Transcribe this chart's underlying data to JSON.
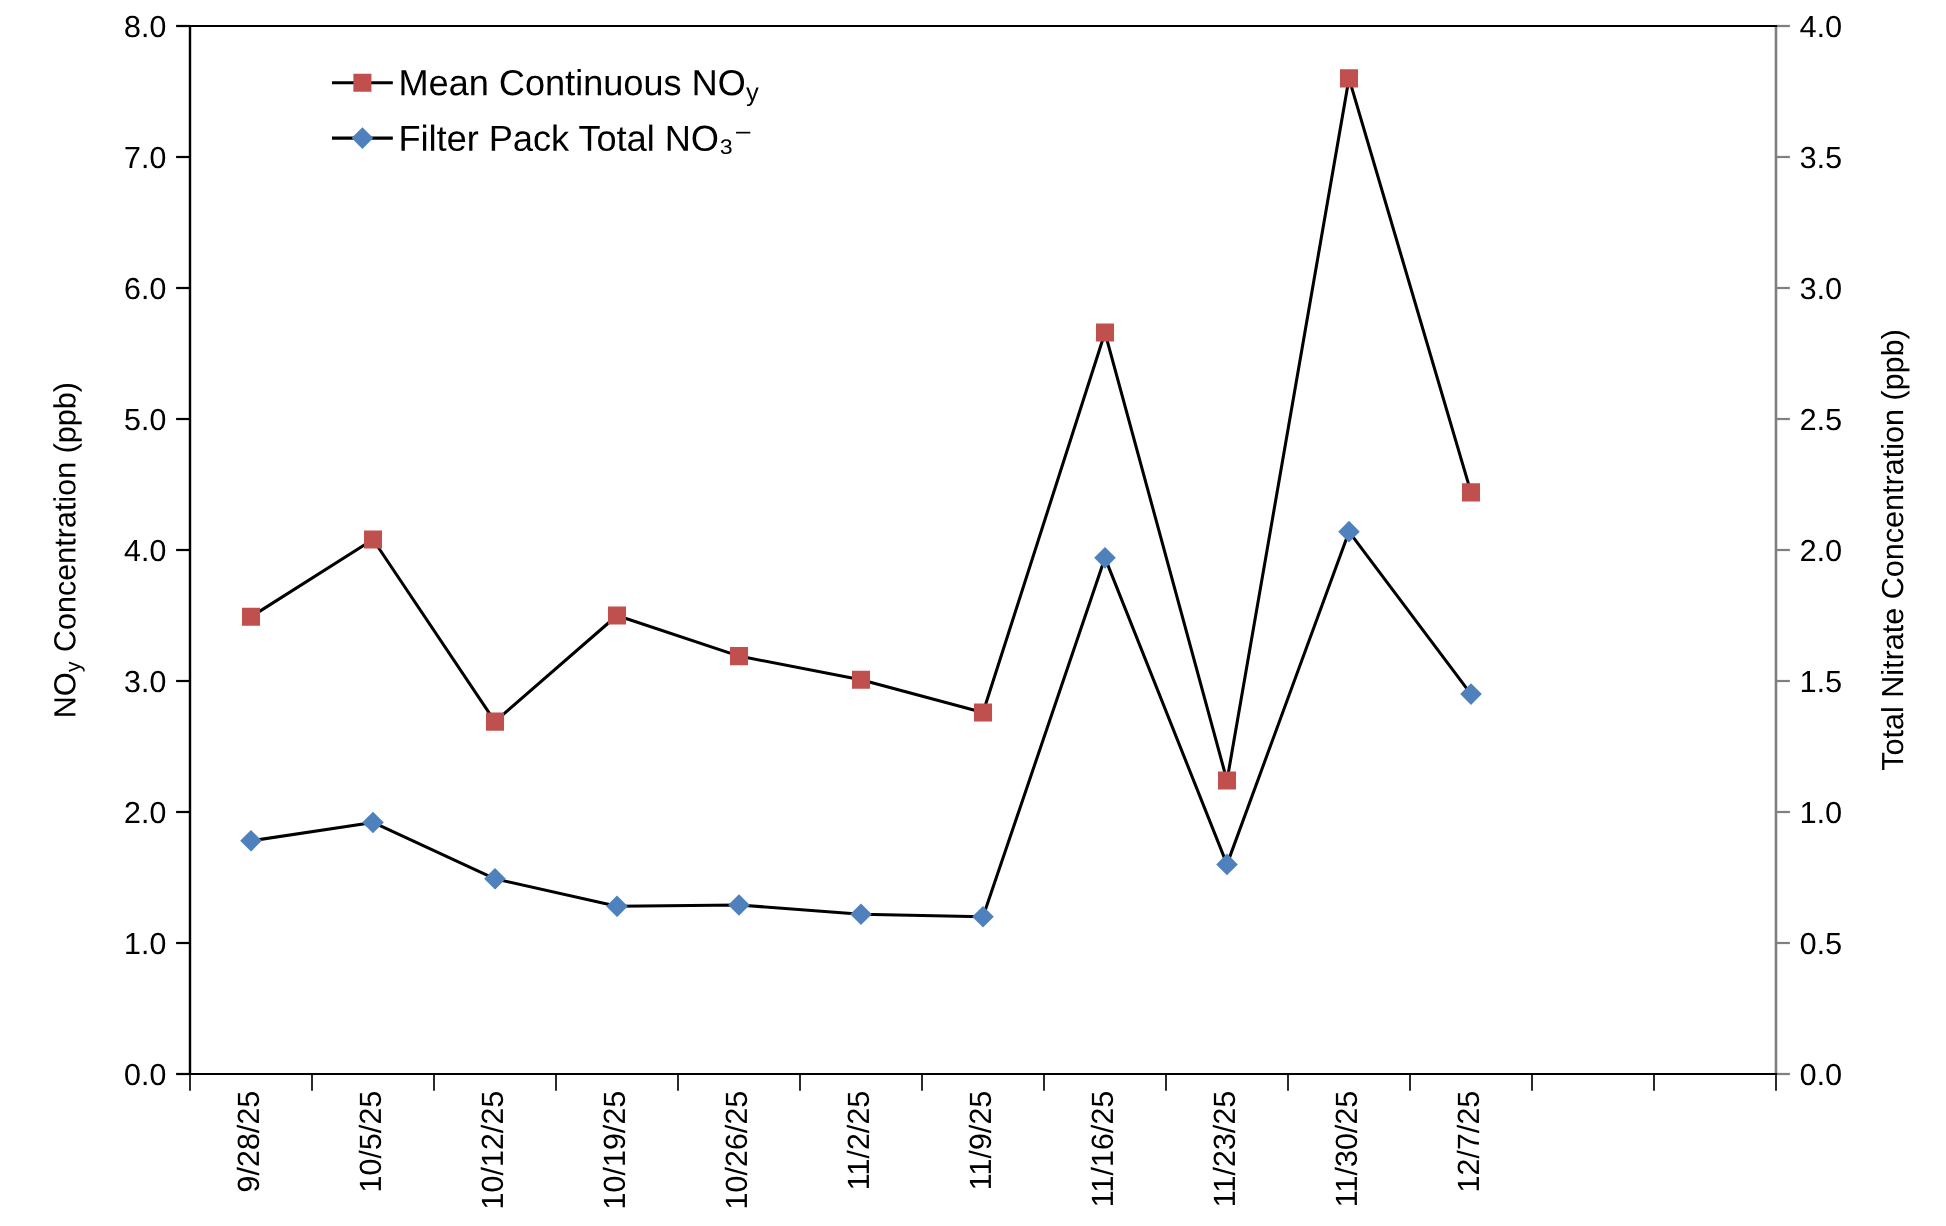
{
  "chart_data": {
    "type": "line",
    "ylabel": "NO$_{y}$ Concentration (ppb)",
    "y2label": "Total Nitrate Concentration (ppb)",
    "categories": [
      "9/28/25",
      "10/5/25",
      "10/12/25",
      "10/19/25",
      "10/26/25",
      "11/2/25",
      "11/9/25",
      "11/16/25",
      "11/23/25",
      "11/30/25",
      "12/7/25",
      null,
      null
    ],
    "series": [
      {
        "name": "Mean Continuous NO$_{y}$",
        "color": "#c0504d",
        "marker": "square",
        "values": [
          3.49,
          4.08,
          2.69,
          3.5,
          3.19,
          3.01,
          2.76,
          5.66,
          2.24,
          7.6,
          4.44,
          null,
          null
        ]
      },
      {
        "name": "Filter Pack Total NO₃⁻",
        "color": "#4f81bd",
        "marker": "diamond",
        "axis": "y2",
        "values": [
          0.89,
          0.96,
          0.745,
          0.64,
          0.645,
          0.61,
          0.6,
          1.97,
          0.8,
          2.07,
          1.45,
          null,
          null
        ]
      }
    ],
    "ylim": [
      0,
      8
    ],
    "yticks": [
      {
        "value": 0,
        "label": "0.0"
      },
      {
        "value": 1,
        "label": "1.0"
      },
      {
        "value": 2,
        "label": "2.0"
      },
      {
        "value": 3,
        "label": "3.0"
      },
      {
        "value": 4,
        "label": "4.0"
      },
      {
        "value": 5,
        "label": "5.0"
      },
      {
        "value": 6,
        "label": "6.0"
      },
      {
        "value": 7,
        "label": "7.0"
      },
      {
        "value": 8,
        "label": "8.0"
      }
    ],
    "y2lim": [
      0,
      4
    ],
    "y2ticks": [
      {
        "value": 0,
        "label": "0.0"
      },
      {
        "value": 0.5,
        "label": "0.5"
      },
      {
        "value": 1,
        "label": "1.0"
      },
      {
        "value": 1.5,
        "label": "1.5"
      },
      {
        "value": 2,
        "label": "2.0"
      },
      {
        "value": 2.5,
        "label": "2.5"
      },
      {
        "value": 3,
        "label": "3.0"
      },
      {
        "value": 3.5,
        "label": "3.5"
      },
      {
        "value": 4,
        "label": "4.0"
      }
    ],
    "grid": false,
    "legend": "top left",
    "line_style": "solid"
  }
}
